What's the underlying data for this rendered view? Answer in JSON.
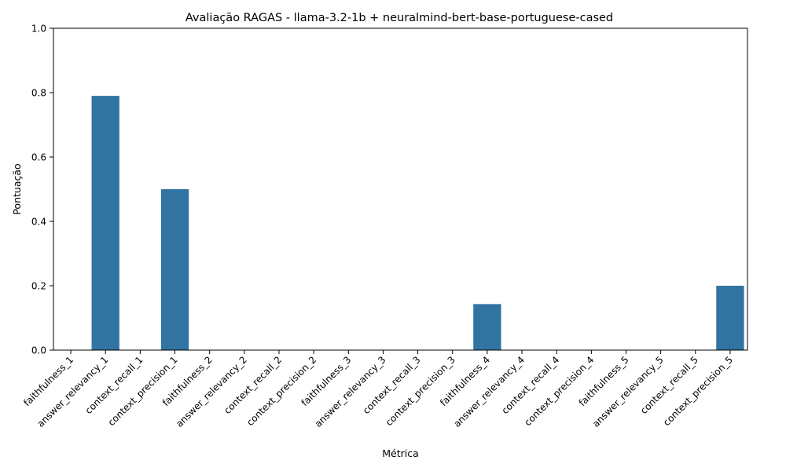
{
  "chart_data": {
    "type": "bar",
    "title": "Avaliação RAGAS - llama-3.2-1b + neuralmind-bert-base-portuguese-cased",
    "xlabel": "Métrica",
    "ylabel": "Pontuação",
    "ylim": [
      0,
      1
    ],
    "yticks": [
      "0.0",
      "0.2",
      "0.4",
      "0.6",
      "0.8",
      "1.0"
    ],
    "bar_color": "#3274a1",
    "grid": false,
    "categories": [
      "faithfulness_1",
      "answer_relevancy_1",
      "context_recall_1",
      "context_precision_1",
      "faithfulness_2",
      "answer_relevancy_2",
      "context_recall_2",
      "context_precision_2",
      "faithfulness_3",
      "answer_relevancy_3",
      "context_recall_3",
      "context_precision_3",
      "faithfulness_4",
      "answer_relevancy_4",
      "context_recall_4",
      "context_precision_4",
      "faithfulness_5",
      "answer_relevancy_5",
      "context_recall_5",
      "context_precision_5"
    ],
    "values": [
      0,
      0.79,
      0,
      0.5,
      0,
      0,
      0,
      0,
      0,
      0,
      0,
      0,
      0.143,
      0,
      0,
      0,
      0,
      0,
      0,
      0.2
    ]
  }
}
